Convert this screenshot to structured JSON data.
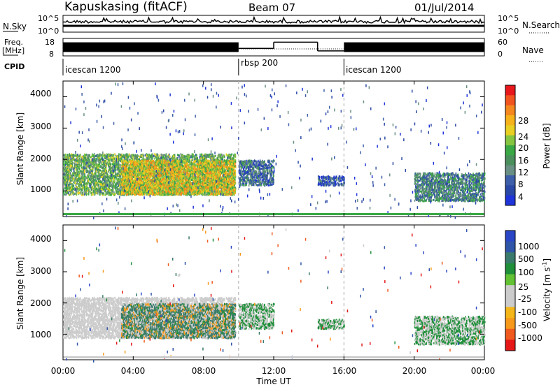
{
  "header": {
    "station": "Kapuskasing (fitACF)",
    "beam": "Beam 07",
    "date": "01/Jul/2014"
  },
  "panels": {
    "nsky": {
      "label": "N.Sky",
      "y_ticks": [
        "10^5",
        "10^0"
      ],
      "right_label": "N.Search",
      "right_ticks": [
        "10^5",
        "10^0"
      ]
    },
    "freq": {
      "label_line1": "Freq.",
      "label_line2": "[MHz]",
      "y_ticks": [
        "18",
        "8"
      ],
      "right_label": "Nave",
      "right_ticks": [
        "60",
        "0"
      ]
    },
    "cpid": {
      "label": "CPID",
      "segments": [
        "icescan 1200",
        "rbsp 200",
        "icescan 1200"
      ]
    }
  },
  "axes": {
    "ylabel": "Slant Range [km]",
    "y_ticks": [
      "4000",
      "3000",
      "2000",
      "1000"
    ],
    "xlabel": "Time UT",
    "x_ticks": [
      "00:00",
      "04:00",
      "08:00",
      "12:00",
      "16:00",
      "20:00",
      "00:00"
    ]
  },
  "colorbars": {
    "power": {
      "label": "Power [dB]",
      "ticks": [
        "28",
        "24",
        "20",
        "16",
        "12",
        "8",
        "4"
      ],
      "colors": [
        "#e8171c",
        "#f2541f",
        "#f4871e",
        "#f6b21b",
        "#e8cf22",
        "#86c540",
        "#3aa845",
        "#4b8f5d",
        "#6a8f84",
        "#3d5ea8",
        "#2a48a5",
        "#1f34d9"
      ]
    },
    "velocity": {
      "label_main": "Velocity",
      "label_units": "[m s",
      "label_exp": "-1",
      "label_close": "]",
      "ticks": [
        "1000",
        "500",
        "100",
        "25",
        "-25",
        "-100",
        "-500",
        "-1000"
      ],
      "colors": [
        "#2a46c7",
        "#2f55a8",
        "#3a7a6c",
        "#1f8f3a",
        "#63c233",
        "#cccccc",
        "#cccccc",
        "#f4b619",
        "#f79a1c",
        "#f05a1e",
        "#e51717"
      ]
    }
  },
  "chart_data": {
    "type": "heatmap",
    "x_range_hours": [
      0,
      24
    ],
    "y_range_km": [
      180,
      4500
    ],
    "cpid_segments": [
      {
        "name": "icescan 1200",
        "start_h": 0,
        "end_h": 10
      },
      {
        "name": "rbsp 200",
        "start_h": 10,
        "end_h": 16
      },
      {
        "name": "icescan 1200",
        "start_h": 16,
        "end_h": 24
      }
    ],
    "transmit_frequency_mhz": [
      {
        "start_h": 0,
        "end_h": 10,
        "low": 8,
        "high": 18
      },
      {
        "start_h": 10,
        "end_h": 12,
        "low": 12,
        "high": 12
      },
      {
        "start_h": 12,
        "end_h": 14.5,
        "low": 17,
        "high": 17
      },
      {
        "start_h": 14.5,
        "end_h": 16,
        "low": 10,
        "high": 10
      },
      {
        "start_h": 16,
        "end_h": 24,
        "low": 8,
        "high": 18
      }
    ],
    "echo_regions": [
      {
        "start_h": 0,
        "end_h": 9.8,
        "range_km": [
          900,
          2200
        ],
        "power_db": 14,
        "velocity": -25
      },
      {
        "start_h": 3.3,
        "end_h": 9.8,
        "range_km": [
          900,
          2000
        ],
        "power_db": 20,
        "velocity": 100
      },
      {
        "start_h": 10,
        "end_h": 12,
        "range_km": [
          1200,
          2000
        ],
        "power_db": 8,
        "velocity": 25
      },
      {
        "start_h": 14.5,
        "end_h": 16,
        "range_km": [
          1200,
          1500
        ],
        "power_db": 6,
        "velocity": 25
      },
      {
        "start_h": 20,
        "end_h": 24,
        "range_km": [
          700,
          1600
        ],
        "power_db": 10,
        "velocity": 25
      }
    ]
  }
}
